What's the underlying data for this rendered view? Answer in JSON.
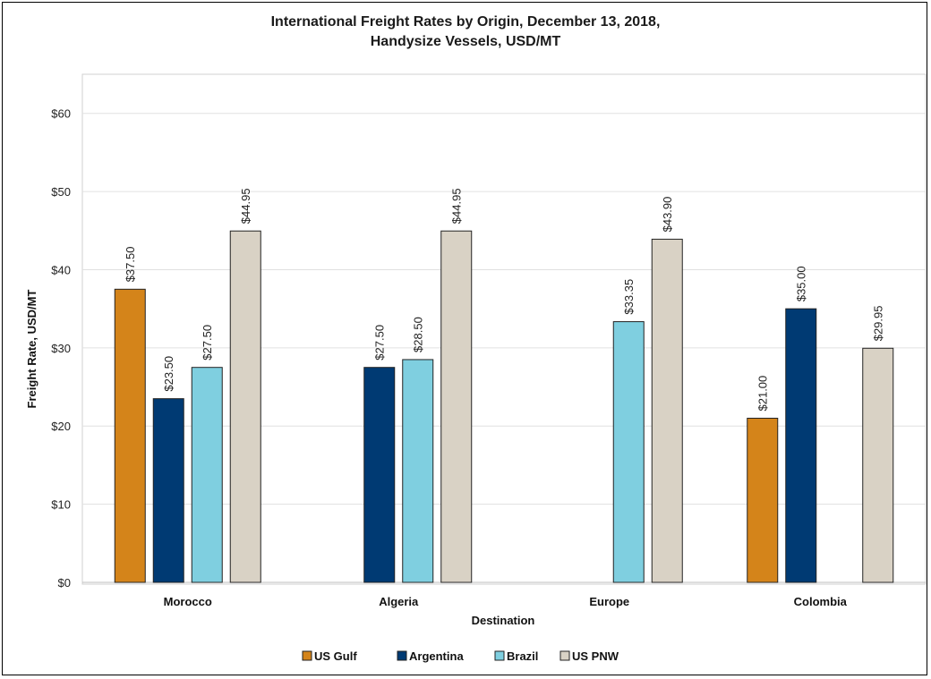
{
  "chart_data": {
    "type": "bar",
    "title_line1": "International Freight Rates by Origin, December 13, 2018,",
    "title_line2": "Handysize Vessels, USD/MT",
    "xlabel": "Destination",
    "ylabel": "Freight Rate, USD/MT",
    "ylim": [
      0,
      65
    ],
    "yticks": [
      0,
      10,
      20,
      30,
      40,
      50,
      60
    ],
    "ytick_labels": [
      "$0",
      "$10",
      "$20",
      "$30",
      "$40",
      "$50",
      "$60"
    ],
    "grid": true,
    "legend_position": "bottom",
    "categories": [
      "Morocco",
      "Algeria",
      "Europe",
      "Colombia"
    ],
    "series": [
      {
        "name": "US Gulf",
        "color": "#D4841A",
        "values": [
          37.5,
          null,
          null,
          21.0
        ],
        "labels": [
          "$37.50",
          null,
          null,
          "$21.00"
        ]
      },
      {
        "name": "Argentina",
        "color": "#003A73",
        "values": [
          23.5,
          27.5,
          null,
          35.0
        ],
        "labels": [
          "$23.50",
          "$27.50",
          null,
          "$35.00"
        ]
      },
      {
        "name": "Brazil",
        "color": "#7FCFE0",
        "values": [
          27.5,
          28.5,
          33.35,
          null
        ],
        "labels": [
          "$27.50",
          "$28.50",
          "$33.35",
          null
        ]
      },
      {
        "name": "US PNW",
        "color": "#D9D2C5",
        "values": [
          44.95,
          44.95,
          43.9,
          29.95
        ],
        "labels": [
          "$44.95",
          "$44.95",
          "$43.90",
          "$29.95"
        ]
      }
    ]
  }
}
